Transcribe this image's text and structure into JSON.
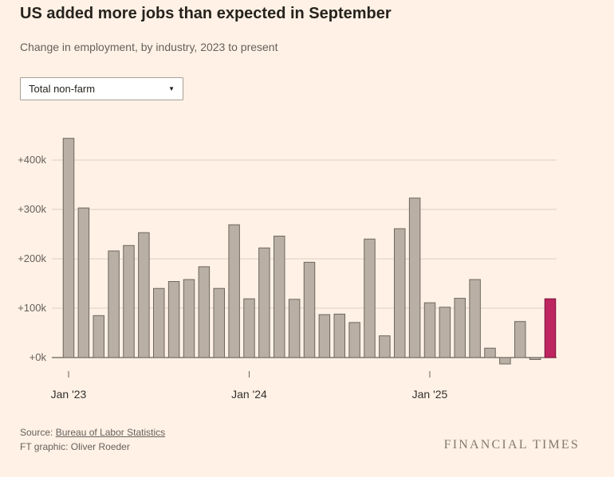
{
  "header": {
    "title": "US added more jobs than expected in September",
    "subtitle": "Change in employment, by industry, 2023 to present"
  },
  "controls": {
    "industry_dropdown": {
      "selected": "Total non-farm",
      "caret_icon": "▼"
    }
  },
  "chart_data": {
    "type": "bar",
    "title": "Change in employment, by industry, 2023 to present",
    "series_name": "Total non-farm",
    "x": [
      "Jan '23",
      "Feb '23",
      "Mar '23",
      "Apr '23",
      "May '23",
      "Jun '23",
      "Jul '23",
      "Aug '23",
      "Sep '23",
      "Oct '23",
      "Nov '23",
      "Dec '23",
      "Jan '24",
      "Feb '24",
      "Mar '24",
      "Apr '24",
      "May '24",
      "Jun '24",
      "Jul '24",
      "Aug '24",
      "Sep '24",
      "Oct '24",
      "Nov '24",
      "Dec '24",
      "Jan '25",
      "Feb '25",
      "Mar '25",
      "Apr '25",
      "May '25",
      "Jun '25",
      "Jul '25",
      "Aug '25",
      "Sep '25"
    ],
    "values": [
      444,
      303,
      85,
      216,
      227,
      253,
      140,
      154,
      158,
      184,
      140,
      269,
      119,
      222,
      246,
      118,
      193,
      87,
      88,
      71,
      240,
      44,
      261,
      323,
      111,
      102,
      120,
      158,
      19,
      -13,
      73,
      -4,
      119
    ],
    "highlight_index": 32,
    "yticks": [
      {
        "value": 0,
        "label": "+0k"
      },
      {
        "value": 100,
        "label": "+100k"
      },
      {
        "value": 200,
        "label": "+200k"
      },
      {
        "value": 300,
        "label": "+300k"
      },
      {
        "value": 400,
        "label": "+400k"
      }
    ],
    "xticks": [
      {
        "index": 0,
        "label": "Jan '23"
      },
      {
        "index": 12,
        "label": "Jan '24"
      },
      {
        "index": 24,
        "label": "Jan '25"
      }
    ],
    "ylim": [
      -30,
      460
    ],
    "grid": true,
    "legend": "none",
    "colors": {
      "bar_fill": "#b9afa4",
      "bar_stroke": "#6e675f",
      "highlight_fill": "#bd265f",
      "highlight_stroke": "#7a1038",
      "gridline": "#ddd0c2",
      "zero_line": "#66605c",
      "y_label": "#66605c",
      "x_label": "#33302e"
    }
  },
  "footer": {
    "source_prefix": "Source:",
    "source_link": "Bureau of Labor Statistics",
    "credit": "FT graphic: Oliver Roeder",
    "brand": "FINANCIAL TIMES"
  }
}
